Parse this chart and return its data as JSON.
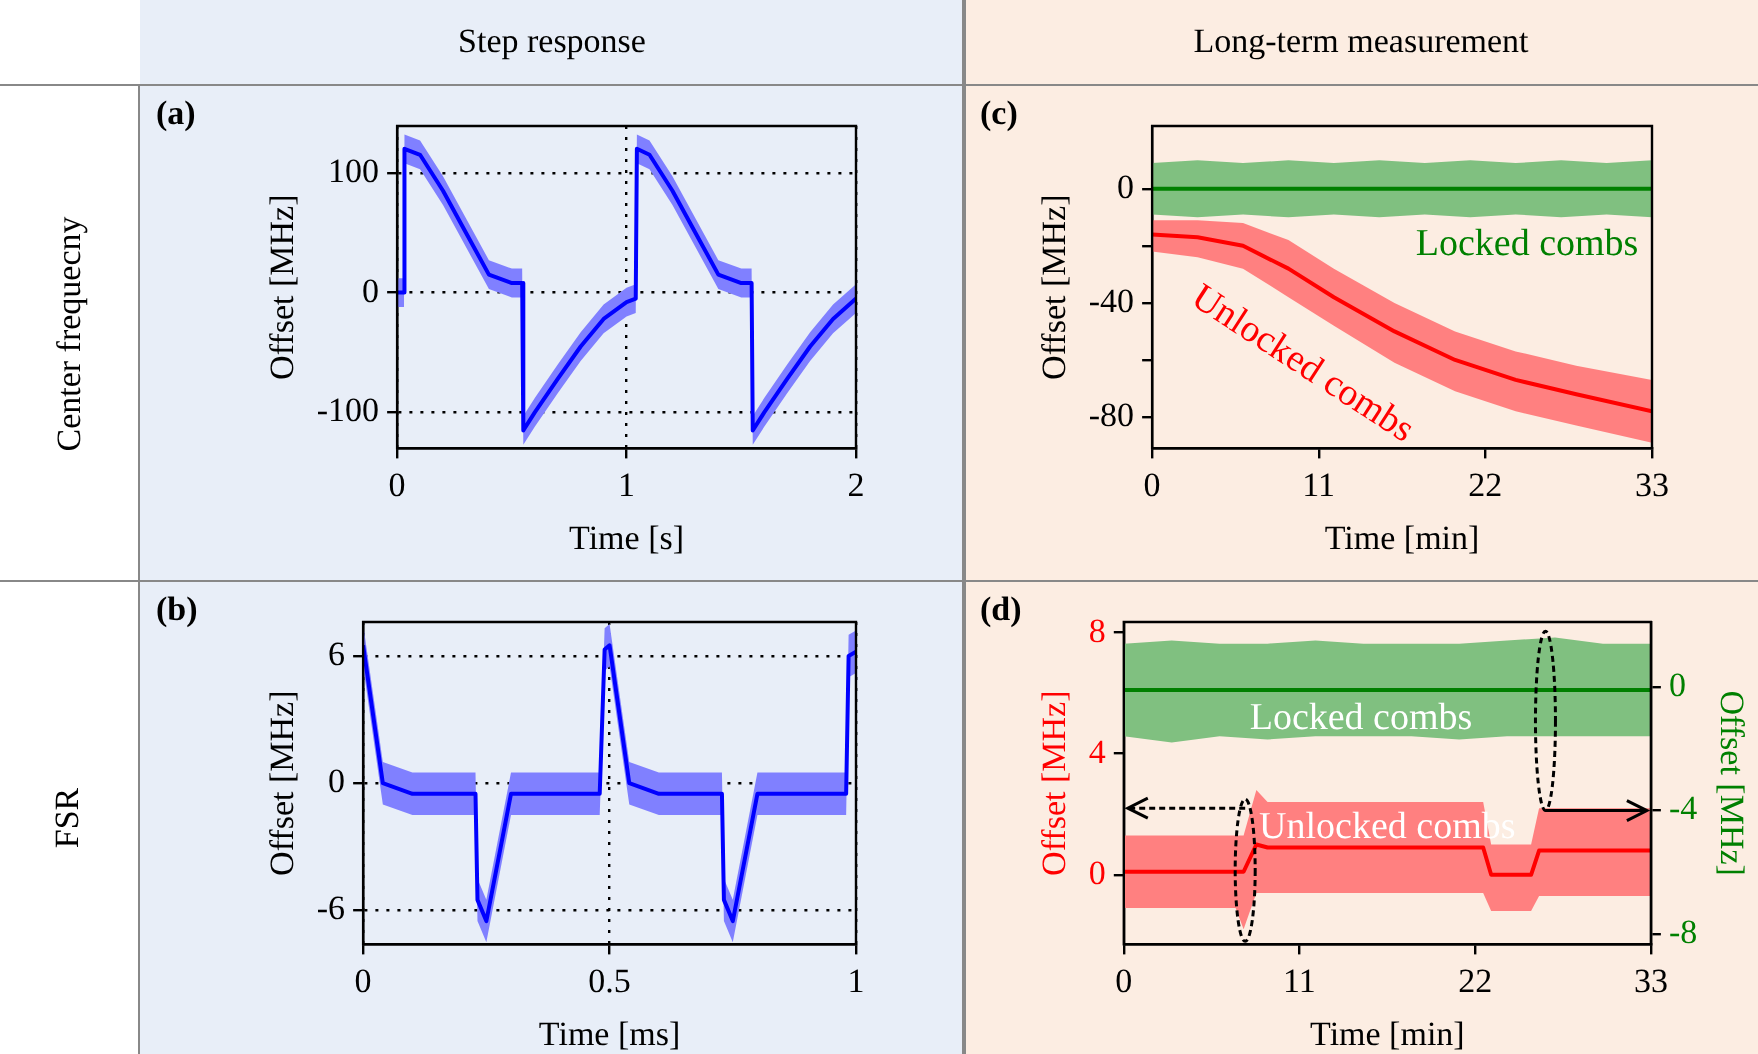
{
  "chart_data": [
    {
      "type": "line",
      "title": "Step response",
      "xlabel": "Time [s]",
      "ylabel": "Offset [MHz]",
      "annotations": [
        "(a)",
        "Center frequecny"
      ],
      "xlim": [
        0,
        2
      ],
      "xticks": [
        0,
        1,
        2
      ],
      "ylim": [
        -130,
        139
      ],
      "yticks": [
        -100,
        0,
        100
      ],
      "grid": true,
      "series": [
        {
          "color": "#0000ff",
          "x": [
            0,
            0.03,
            0.032,
            0.1,
            0.2,
            0.3,
            0.4,
            0.5,
            0.545,
            0.55,
            0.6,
            0.7,
            0.8,
            0.9,
            1.0,
            1.04,
            1.045,
            1.1,
            1.2,
            1.3,
            1.4,
            1.5,
            1.545,
            1.55,
            1.6,
            1.7,
            1.8,
            1.9,
            2.0
          ],
          "values": [
            0,
            0,
            120,
            115,
            85,
            50,
            15,
            8,
            8,
            -115,
            -100,
            -72,
            -45,
            -22,
            -8,
            -5,
            120,
            115,
            85,
            50,
            15,
            8,
            8,
            -115,
            -100,
            -72,
            -45,
            -22,
            -5
          ],
          "lower": [
            -12,
            -12,
            108,
            103,
            73,
            38,
            3,
            -4,
            -4,
            -127,
            -112,
            -84,
            -57,
            -34,
            -20,
            -17,
            108,
            103,
            73,
            38,
            3,
            -4,
            -4,
            -127,
            -112,
            -84,
            -57,
            -34,
            -17
          ],
          "upper": [
            12,
            12,
            132,
            127,
            97,
            62,
            27,
            20,
            20,
            -103,
            -88,
            -60,
            -33,
            -10,
            4,
            7,
            132,
            127,
            97,
            62,
            27,
            20,
            20,
            -103,
            -88,
            -60,
            -33,
            -10,
            7
          ]
        }
      ]
    },
    {
      "type": "line",
      "xlabel": "Time [ms]",
      "ylabel": "Offset [MHz]",
      "annotations": [
        "(b)",
        "FSR"
      ],
      "xlim": [
        0,
        1
      ],
      "xticks": [
        0,
        0.5,
        1
      ],
      "ylim": [
        -7.6,
        7.6
      ],
      "yticks": [
        -6,
        0,
        6
      ],
      "grid": true,
      "series": [
        {
          "color": "#0000ff",
          "x": [
            0,
            0.04,
            0.1,
            0.228,
            0.232,
            0.25,
            0.3,
            0.4,
            0.48,
            0.49,
            0.5,
            0.54,
            0.6,
            0.728,
            0.732,
            0.75,
            0.8,
            0.9,
            0.98,
            0.985,
            1
          ],
          "values": [
            6.5,
            0,
            -0.5,
            -0.5,
            -5.5,
            -6.5,
            -0.5,
            -0.5,
            -0.5,
            6.3,
            6.5,
            0,
            -0.5,
            -0.5,
            -5.5,
            -6.5,
            -0.5,
            -0.5,
            -0.5,
            6,
            6.2
          ],
          "lower": [
            5.5,
            -1,
            -1.5,
            -1.5,
            -6.5,
            -7.5,
            -1.5,
            -1.5,
            -1.5,
            5.3,
            5.5,
            -1,
            -1.5,
            -1.5,
            -6.5,
            -7.5,
            -1.5,
            -1.5,
            -1.5,
            5,
            5.2
          ],
          "upper": [
            7.5,
            1,
            0.5,
            0.5,
            -4.5,
            -5.5,
            0.5,
            0.5,
            0.5,
            7.3,
            7.5,
            1,
            0.5,
            0.5,
            -4.5,
            -5.5,
            0.5,
            0.5,
            0.5,
            7,
            7.2
          ]
        }
      ]
    },
    {
      "type": "line",
      "title": "Long-term measurement",
      "xlabel": "Time [min]",
      "ylabel": "Offset [MHz]",
      "annotations": [
        "(c)"
      ],
      "xlim": [
        0,
        33
      ],
      "xticks": [
        0,
        11,
        22,
        33
      ],
      "ylim": [
        -91,
        22
      ],
      "yticks": [
        -80,
        {
          "value": -60,
          "label": null
        },
        -40,
        {
          "value": -20,
          "label": null
        },
        0
      ],
      "series": [
        {
          "name": "Locked combs",
          "color": "#008000",
          "x": [
            0,
            3,
            6,
            9,
            12,
            15,
            18,
            21,
            24,
            27,
            30,
            33
          ],
          "values": [
            0,
            0,
            0,
            0,
            0,
            0,
            0,
            0,
            0,
            0,
            0,
            0
          ],
          "lower": [
            -9,
            -10,
            -9,
            -10,
            -9,
            -10,
            -9,
            -10,
            -9,
            -10,
            -9,
            -10
          ],
          "upper": [
            9,
            10,
            9,
            10,
            9,
            10,
            9,
            10,
            9,
            10,
            9,
            10
          ]
        },
        {
          "name": "Unlocked combs",
          "color": "#ff0000",
          "x": [
            0,
            3,
            6,
            9,
            12,
            16,
            20,
            24,
            28,
            33
          ],
          "values": [
            -16,
            -17,
            -20,
            -28,
            -38,
            -50,
            -60,
            -67,
            -72,
            -78
          ],
          "lower": [
            -22,
            -24,
            -28,
            -38,
            -48,
            -61,
            -71,
            -78,
            -83,
            -89
          ],
          "upper": [
            -11,
            -11,
            -12,
            -18,
            -28,
            -40,
            -50,
            -57,
            -62,
            -67
          ]
        }
      ]
    },
    {
      "type": "line",
      "xlabel": "Time [min]",
      "ylabel": "Offset [MHz]",
      "y2label": "Offset [MHz]",
      "annotations": [
        "(d)"
      ],
      "xlim": [
        0,
        33
      ],
      "xticks": [
        0,
        11,
        22,
        33
      ],
      "ylim": [
        -2.3,
        8.35
      ],
      "yticks": [
        0,
        4,
        8
      ],
      "y2lim": [
        -8.33,
        2.1
      ],
      "y2ticks": [
        -8,
        -4,
        0
      ],
      "series": [
        {
          "name": "Locked combs",
          "color": "#008000",
          "axis": "y2",
          "x": [
            0,
            3,
            6,
            9,
            12,
            15,
            18,
            21,
            24,
            27,
            30,
            33
          ],
          "values": [
            -0.1,
            -0.1,
            -0.1,
            -0.1,
            -0.1,
            -0.1,
            -0.1,
            -0.1,
            -0.1,
            -0.1,
            -0.1,
            -0.1
          ],
          "lower": [
            -1.6,
            -1.8,
            -1.6,
            -1.7,
            -1.6,
            -1.6,
            -1.6,
            -1.7,
            -1.6,
            -1.6,
            -1.6,
            -1.6
          ],
          "upper": [
            1.4,
            1.5,
            1.4,
            1.4,
            1.5,
            1.4,
            1.4,
            1.4,
            1.5,
            1.6,
            1.4,
            1.4
          ]
        },
        {
          "name": "Unlocked combs",
          "color": "#ff0000",
          "x": [
            0,
            7,
            7.5,
            8.3,
            9,
            22.5,
            23,
            25.5,
            26,
            33
          ],
          "values": [
            0.1,
            0.1,
            0.1,
            1,
            0.9,
            0.9,
            0,
            0,
            0.8,
            0.8
          ],
          "lower": [
            -1.1,
            -1.1,
            -1.8,
            -0.6,
            -0.6,
            -0.6,
            -1.2,
            -1.2,
            -0.7,
            -0.7
          ],
          "upper": [
            1.3,
            1.3,
            1.3,
            2.8,
            2.4,
            2.4,
            1,
            1,
            2.2,
            2.2
          ]
        }
      ]
    }
  ]
}
